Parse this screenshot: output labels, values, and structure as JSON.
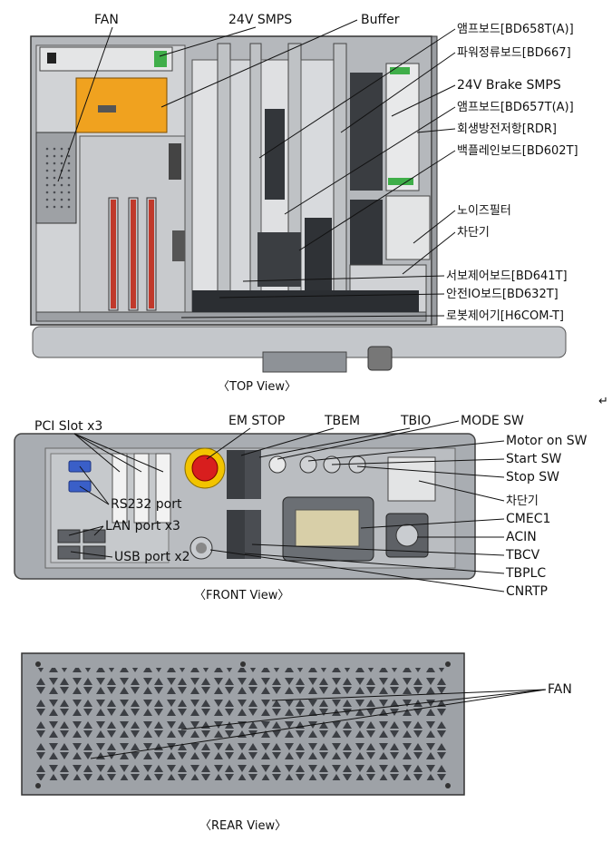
{
  "top_view": {
    "caption": "〈TOP View〉",
    "labels": {
      "fan": "FAN",
      "smps24": "24V SMPS",
      "buffer": "Buffer",
      "amp658": "앰프보드[BD658T(A)]",
      "power667": "파워정류보드[BD667]",
      "brake_smps": "24V Brake SMPS",
      "amp657": "앰프보드[BD657T(A)]",
      "rdr": "회생방전저항[RDR]",
      "backplane": "백플레인보드[BD602T]",
      "noise_filter": "노이즈필터",
      "breaker": "차단기",
      "servo641": "서보제어보드[BD641T]",
      "safety632": "안전IO보드[BD632T]",
      "robot_ctrl": "로봇제어기[H6COM-T]"
    }
  },
  "front_view": {
    "caption": "〈FRONT View〉",
    "labels": {
      "pci": "PCI Slot x3",
      "em_stop": "EM STOP",
      "tbem": "TBEM",
      "tbio": "TBIO",
      "mode_sw": "MODE SW",
      "motor_on": "Motor on SW",
      "start_sw": "Start SW",
      "stop_sw": "Stop SW",
      "rs232": "RS232 port",
      "lan": "LAN port x3",
      "usb": "USB port x2",
      "breaker": "차단기",
      "cmec1": "CMEC1",
      "acin": "ACIN",
      "tbcv": "TBCV",
      "tbplc": "TBPLC",
      "cnrtp": "CNRTP"
    }
  },
  "rear_view": {
    "caption": "〈REAR View〉",
    "labels": {
      "fan": "FAN"
    }
  },
  "return_mark": "↵",
  "colors": {
    "chassis": "#a9adb2",
    "chassis_dark": "#5a5e63",
    "smps_orange": "#f0a21f",
    "estop_red": "#d81e1e",
    "estop_yellow": "#f2c400",
    "board_green": "#3fae49",
    "slot_red": "#c0392b",
    "connector_blue": "#3a5fc8"
  }
}
